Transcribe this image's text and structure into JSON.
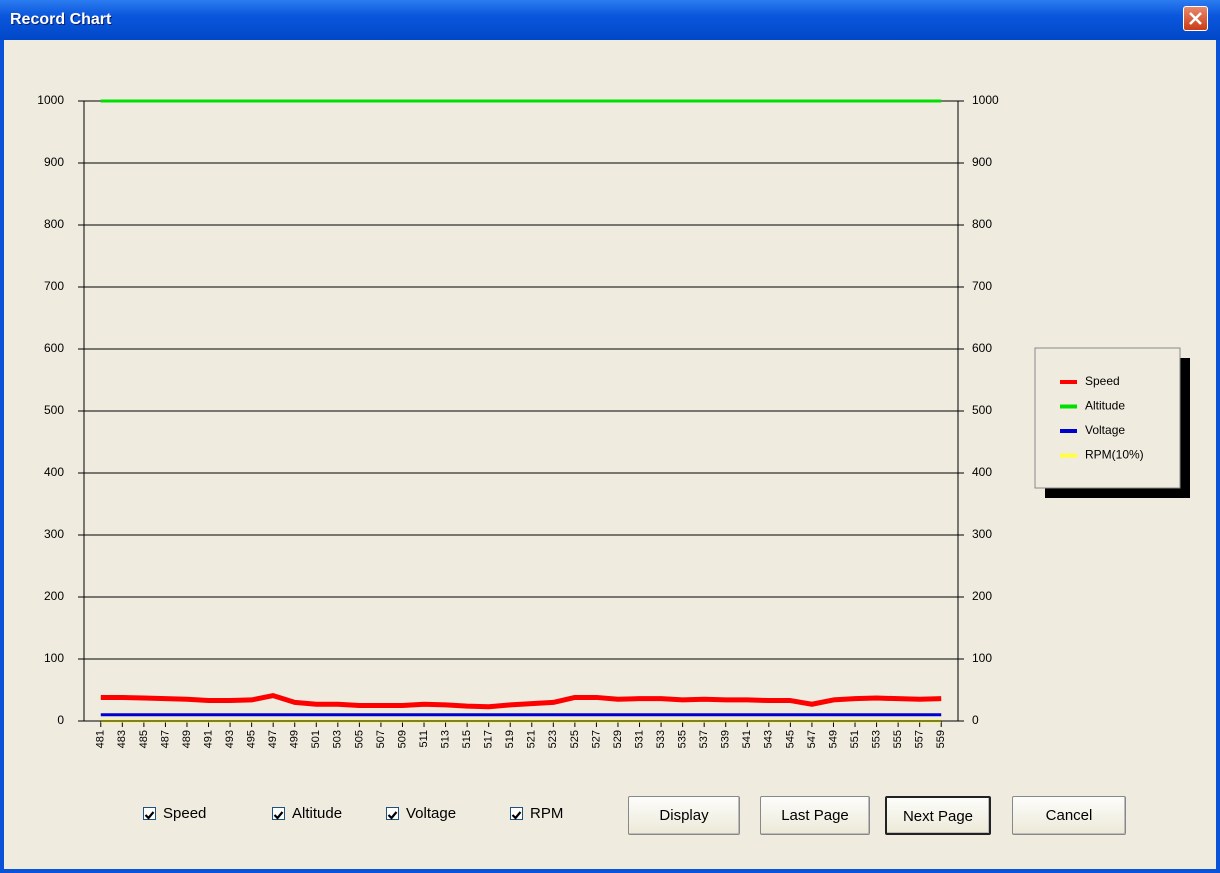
{
  "window": {
    "title": "Record Chart"
  },
  "chart_data": {
    "type": "line",
    "categories": [
      "481",
      "483",
      "485",
      "487",
      "489",
      "491",
      "493",
      "495",
      "497",
      "499",
      "501",
      "503",
      "505",
      "507",
      "509",
      "511",
      "513",
      "515",
      "517",
      "519",
      "521",
      "523",
      "525",
      "527",
      "529",
      "531",
      "533",
      "535",
      "537",
      "539",
      "541",
      "543",
      "545",
      "547",
      "549",
      "551",
      "553",
      "555",
      "557",
      "559"
    ],
    "series": [
      {
        "name": "Speed",
        "color": "#ff0000",
        "values": [
          38,
          38,
          37,
          36,
          35,
          33,
          33,
          34,
          41,
          30,
          27,
          27,
          25,
          25,
          25,
          27,
          26,
          24,
          23,
          26,
          28,
          30,
          38,
          38,
          35,
          36,
          36,
          34,
          35,
          34,
          34,
          33,
          33,
          27,
          34,
          36,
          37,
          36,
          35,
          36
        ]
      },
      {
        "name": "Altitude",
        "color": "#00e000",
        "values": [
          1000,
          1000,
          1000,
          1000,
          1000,
          1000,
          1000,
          1000,
          1000,
          1000,
          1000,
          1000,
          1000,
          1000,
          1000,
          1000,
          1000,
          1000,
          1000,
          1000,
          1000,
          1000,
          1000,
          1000,
          1000,
          1000,
          1000,
          1000,
          1000,
          1000,
          1000,
          1000,
          1000,
          1000,
          1000,
          1000,
          1000,
          1000,
          1000,
          1000
        ]
      },
      {
        "name": "Voltage",
        "color": "#0000cc",
        "values": [
          10,
          10,
          10,
          10,
          10,
          10,
          10,
          10,
          10,
          10,
          10,
          10,
          10,
          10,
          10,
          10,
          10,
          10,
          10,
          10,
          10,
          10,
          10,
          10,
          10,
          10,
          10,
          10,
          10,
          10,
          10,
          10,
          10,
          10,
          10,
          10,
          10,
          10,
          10,
          10
        ]
      },
      {
        "name": "RPM(10%)",
        "color": "#ffff40",
        "values": [
          0,
          0,
          0,
          0,
          0,
          0,
          0,
          0,
          0,
          0,
          0,
          0,
          0,
          0,
          0,
          0,
          0,
          0,
          0,
          0,
          0,
          0,
          0,
          0,
          0,
          0,
          0,
          0,
          0,
          0,
          0,
          0,
          0,
          0,
          0,
          0,
          0,
          0,
          0,
          0
        ]
      }
    ],
    "ylim": [
      0,
      1000
    ],
    "yticks": [
      0,
      100,
      200,
      300,
      400,
      500,
      600,
      700,
      800,
      900,
      1000
    ],
    "y2lim": [
      0,
      1000
    ],
    "y2ticks": [
      0,
      100,
      200,
      300,
      400,
      500,
      600,
      700,
      800,
      900,
      1000
    ],
    "grid": true,
    "legend": "right"
  },
  "controls": {
    "checkboxes": [
      {
        "label": "Speed",
        "checked": true
      },
      {
        "label": "Altitude",
        "checked": true
      },
      {
        "label": "Voltage",
        "checked": true
      },
      {
        "label": "RPM",
        "checked": true
      }
    ],
    "buttons": [
      "Display",
      "Last Page",
      "Next Page",
      "Cancel"
    ]
  }
}
